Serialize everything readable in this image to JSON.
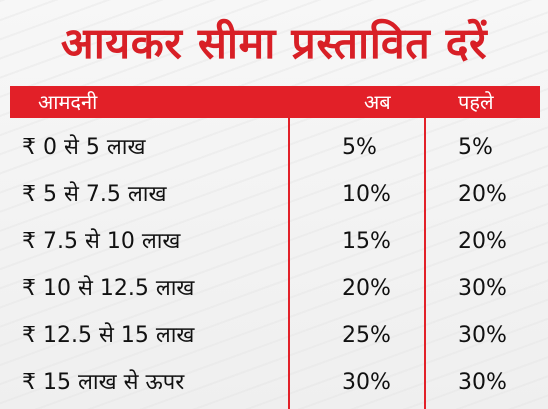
{
  "title": "आयकर सीमा प्रस्तावित दरें",
  "headers": {
    "income": "आमदनी",
    "now": "अब",
    "before": "पहले"
  },
  "rows": [
    {
      "slab": "₹ 0 से 5 लाख",
      "now": "5%",
      "before": "5%"
    },
    {
      "slab": "₹ 5 से 7.5 लाख",
      "now": "10%",
      "before": "20%"
    },
    {
      "slab": "₹ 7.5 से 10 लाख",
      "now": "15%",
      "before": "20%"
    },
    {
      "slab": "₹ 10 से 12.5 लाख",
      "now": "20%",
      "before": "30%"
    },
    {
      "slab": "₹ 12.5 से 15 लाख",
      "now": "25%",
      "before": "30%"
    },
    {
      "slab": "₹ 15 लाख से ऊपर",
      "now": "30%",
      "before": "30%"
    }
  ],
  "colors": {
    "accent": "#e22028",
    "title": "#d81f26"
  }
}
